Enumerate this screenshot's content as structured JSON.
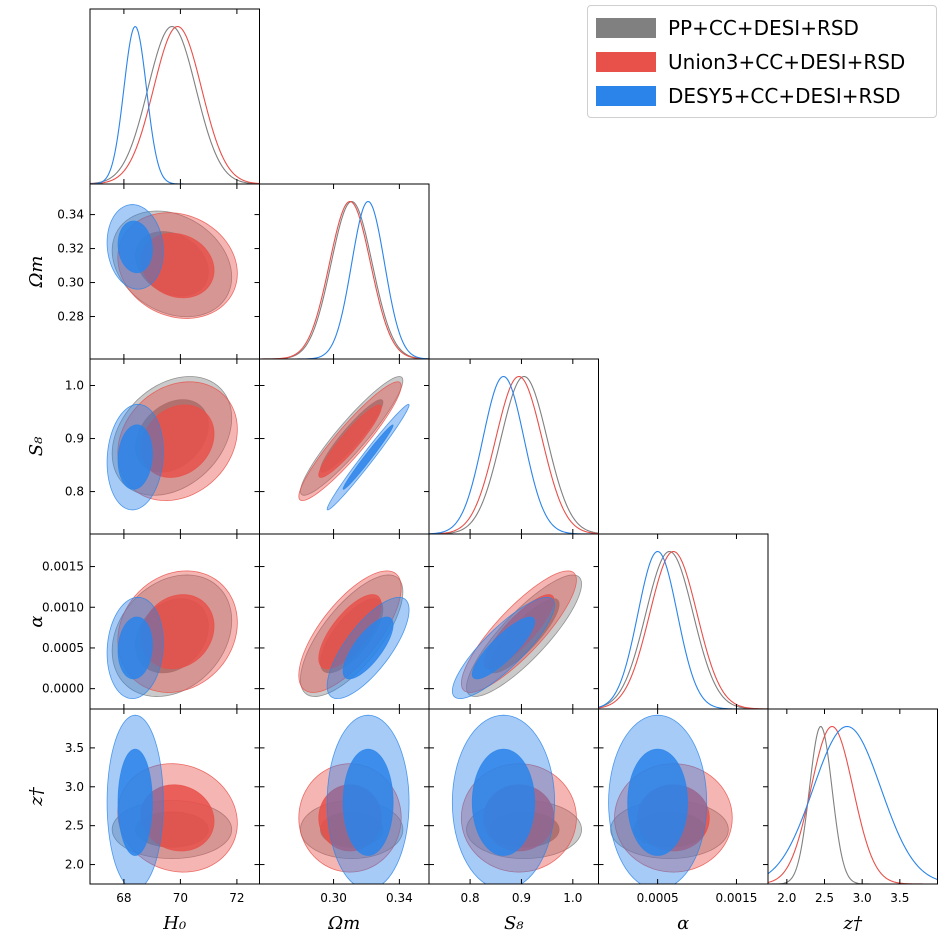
{
  "legend": {
    "items": [
      {
        "label": "PP+CC+DESI+RSD",
        "color": "#808080"
      },
      {
        "label": "Union3+CC+DESI+RSD",
        "color": "#e8504a"
      },
      {
        "label": "DESY5+CC+DESI+RSD",
        "color": "#2a84ea"
      }
    ]
  },
  "chart_data": {
    "type": "corner",
    "title": "",
    "parameters": [
      {
        "name": "H0",
        "label": "H₀",
        "range": [
          66.8,
          72.8
        ],
        "ticks": [
          68,
          70,
          72
        ],
        "tick_labels": [
          "68",
          "70",
          "72"
        ]
      },
      {
        "name": "Omega_m",
        "label": "Ωm",
        "range": [
          0.255,
          0.358
        ],
        "ticks": [
          0.3,
          0.34
        ],
        "tick_labels": [
          "0.30",
          "0.34"
        ]
      },
      {
        "name": "S8",
        "label": "S₈",
        "range": [
          0.72,
          1.05
        ],
        "ticks": [
          0.8,
          0.9,
          1.0
        ],
        "tick_labels": [
          "0.8",
          "0.9",
          "1.0"
        ]
      },
      {
        "name": "alpha",
        "label": "α",
        "range": [
          -0.00025,
          0.0019
        ],
        "ticks": [
          0.0005,
          0.0015
        ],
        "tick_labels": [
          "0.0005",
          "0.0015"
        ]
      },
      {
        "name": "z_t",
        "label": "z†",
        "range": [
          1.75,
          4.0
        ],
        "ticks": [
          2.0,
          2.5,
          3.0,
          3.5
        ],
        "tick_labels": [
          "2.0",
          "2.5",
          "3.0",
          "3.5"
        ]
      }
    ],
    "y_tick_labels": {
      "Omega_m": {
        "ticks": [
          0.28,
          0.3,
          0.32,
          0.34
        ],
        "labels": [
          "0.28",
          "0.30",
          "0.32",
          "0.34"
        ]
      },
      "S8": {
        "ticks": [
          0.8,
          0.9,
          1.0
        ],
        "labels": [
          "0.8",
          "0.9",
          "1.0"
        ]
      },
      "alpha": {
        "ticks": [
          0.0,
          0.0005,
          0.001,
          0.0015
        ],
        "labels": [
          "0.0000",
          "0.0005",
          "0.0010",
          "0.0015"
        ]
      },
      "z_t": {
        "ticks": [
          2.0,
          2.5,
          3.0,
          3.5
        ],
        "labels": [
          "2.0",
          "2.5",
          "3.0",
          "3.5"
        ]
      }
    },
    "series": [
      {
        "name": "PP+CC+DESI+RSD",
        "color": "#808080",
        "mean": {
          "H0": 69.7,
          "Omega_m": 0.311,
          "S8": 0.905,
          "alpha": 0.00065,
          "z_t": 2.45
        },
        "sigma": {
          "H0": 0.85,
          "Omega_m": 0.0125,
          "S8": 0.045,
          "alpha": 0.0003,
          "z_t": 0.15
        },
        "correlations": [
          {
            "pair": [
              "H0",
              "Omega_m"
            ],
            "rho": -0.25
          },
          {
            "pair": [
              "H0",
              "S8"
            ],
            "rho": 0.3
          },
          {
            "pair": [
              "H0",
              "alpha"
            ],
            "rho": 0.25
          },
          {
            "pair": [
              "H0",
              "z_t"
            ],
            "rho": 0.0
          },
          {
            "pair": [
              "Omega_m",
              "S8"
            ],
            "rho": 0.93
          },
          {
            "pair": [
              "Omega_m",
              "alpha"
            ],
            "rho": 0.72
          },
          {
            "pair": [
              "Omega_m",
              "z_t"
            ],
            "rho": 0.0
          },
          {
            "pair": [
              "S8",
              "alpha"
            ],
            "rho": 0.85
          },
          {
            "pair": [
              "S8",
              "z_t"
            ],
            "rho": 0.0
          },
          {
            "pair": [
              "alpha",
              "z_t"
            ],
            "rho": 0.0
          }
        ]
      },
      {
        "name": "Union3+CC+DESI+RSD",
        "color": "#e8504a",
        "mean": {
          "H0": 69.9,
          "Omega_m": 0.31,
          "S8": 0.895,
          "alpha": 0.0007,
          "z_t": 2.6
        },
        "sigma": {
          "H0": 0.85,
          "Omega_m": 0.0125,
          "S8": 0.045,
          "alpha": 0.0003,
          "z_t": 0.28
        },
        "correlations": [
          {
            "pair": [
              "H0",
              "Omega_m"
            ],
            "rho": -0.15
          },
          {
            "pair": [
              "H0",
              "S8"
            ],
            "rho": 0.2
          },
          {
            "pair": [
              "H0",
              "alpha"
            ],
            "rho": 0.15
          },
          {
            "pair": [
              "H0",
              "z_t"
            ],
            "rho": -0.1
          },
          {
            "pair": [
              "Omega_m",
              "S8"
            ],
            "rho": 0.93
          },
          {
            "pair": [
              "Omega_m",
              "alpha"
            ],
            "rho": 0.72
          },
          {
            "pair": [
              "Omega_m",
              "z_t"
            ],
            "rho": 0.0
          },
          {
            "pair": [
              "S8",
              "alpha"
            ],
            "rho": 0.85
          },
          {
            "pair": [
              "S8",
              "z_t"
            ],
            "rho": 0.0
          },
          {
            "pair": [
              "alpha",
              "z_t"
            ],
            "rho": 0.0
          }
        ]
      },
      {
        "name": "DESY5+CC+DESI+RSD",
        "color": "#2a84ea",
        "mean": {
          "H0": 68.4,
          "Omega_m": 0.321,
          "S8": 0.865,
          "alpha": 0.0005,
          "z_t": 2.8
        },
        "sigma": {
          "H0": 0.4,
          "Omega_m": 0.01,
          "S8": 0.04,
          "alpha": 0.00025,
          "z_t": 0.45
        },
        "correlations": [
          {
            "pair": [
              "H0",
              "Omega_m"
            ],
            "rho": -0.1
          },
          {
            "pair": [
              "H0",
              "S8"
            ],
            "rho": 0.1
          },
          {
            "pair": [
              "H0",
              "alpha"
            ],
            "rho": 0.1
          },
          {
            "pair": [
              "H0",
              "z_t"
            ],
            "rho": 0.0
          },
          {
            "pair": [
              "Omega_m",
              "S8"
            ],
            "rho": 0.985
          },
          {
            "pair": [
              "Omega_m",
              "alpha"
            ],
            "rho": 0.75
          },
          {
            "pair": [
              "Omega_m",
              "z_t"
            ],
            "rho": 0.0
          },
          {
            "pair": [
              "S8",
              "alpha"
            ],
            "rho": 0.85
          },
          {
            "pair": [
              "S8",
              "z_t"
            ],
            "rho": 0.0
          },
          {
            "pair": [
              "alpha",
              "z_t"
            ],
            "rho": 0.0
          }
        ]
      }
    ]
  }
}
